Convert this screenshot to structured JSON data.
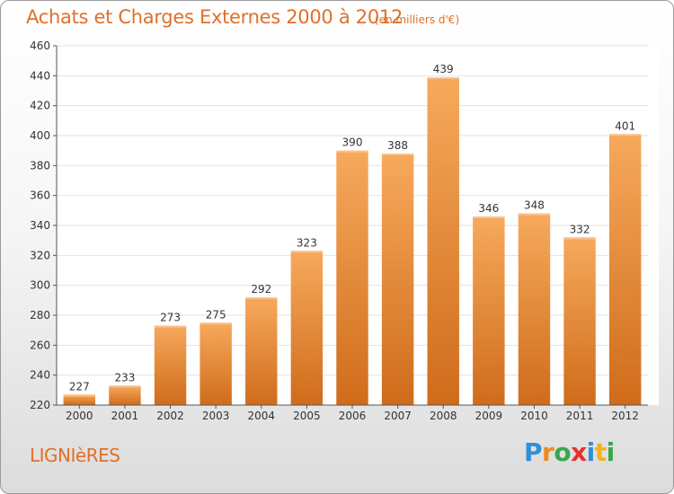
{
  "header": {
    "title": "Achats et Charges Externes 2000 à 2012",
    "subtitle": "(en milliers d'€)"
  },
  "footer": {
    "town": "LIGNIèRES",
    "logo": {
      "letters": [
        "P",
        "r",
        "o",
        "x",
        "i",
        "t",
        "i"
      ],
      "colors": [
        "#2f8fd8",
        "#f08a1c",
        "#3aa64a",
        "#e3332b",
        "#2f8fd8",
        "#f2b21c",
        "#3aa64a"
      ]
    }
  },
  "colors": {
    "bar_light": "#f7a95c",
    "bar_dark": "#cf6c1b",
    "grid": "#e2e2e2",
    "axis": "#555555",
    "accent": "#e0702a"
  },
  "chart_data": {
    "type": "bar",
    "title": "Achats et Charges Externes 2000 à 2012",
    "subtitle": "(en milliers d'€)",
    "categories": [
      "2000",
      "2001",
      "2002",
      "2003",
      "2004",
      "2005",
      "2006",
      "2007",
      "2008",
      "2009",
      "2010",
      "2011",
      "2012"
    ],
    "values": [
      227,
      233,
      273,
      275,
      292,
      323,
      390,
      388,
      439,
      346,
      348,
      332,
      401
    ],
    "ylim": [
      220,
      460
    ],
    "yticks": [
      220,
      240,
      260,
      280,
      300,
      320,
      340,
      360,
      380,
      400,
      420,
      440,
      460
    ],
    "grid": true,
    "legend": "none"
  }
}
